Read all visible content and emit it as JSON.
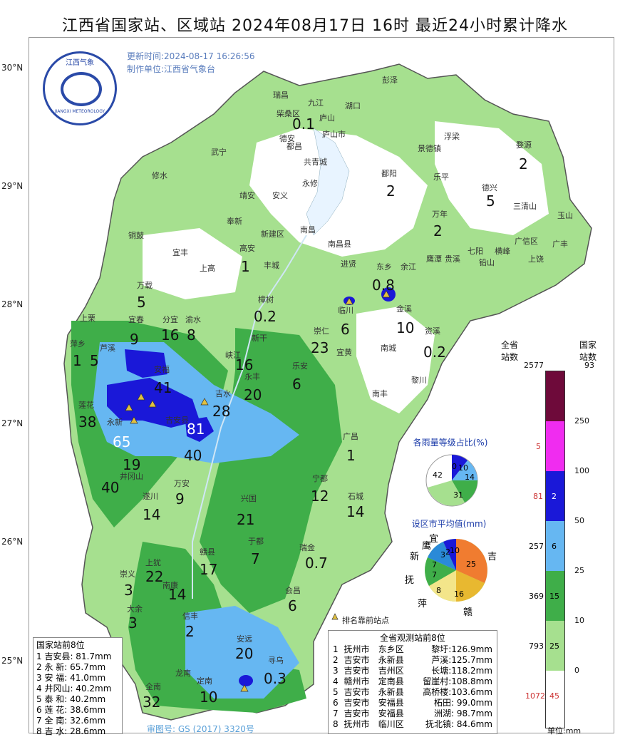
{
  "title": "江西省国家站、区域站   2024年08月17日 16时   最近24小时累计降水",
  "meta": {
    "update_time": "更新时间:2024-08-17 16:26:56",
    "producer": "制作单位:江西省气象台"
  },
  "logo": {
    "cn": "江西气象",
    "en": "JIANGXI METEOROLOGY"
  },
  "latitudes": [
    "30°N",
    "29°N",
    "28°N",
    "27°N",
    "26°N",
    "25°N"
  ],
  "cities": [
    "彭泽",
    "瑞昌",
    "九江",
    "湖口",
    "柴桑区",
    "庐山",
    "庐山市",
    "德安",
    "浮梁",
    "都昌",
    "武宁",
    "景德镇",
    "婺源",
    "共青城",
    "修水",
    "永修",
    "鄱阳",
    "乐平",
    "靖安",
    "安义",
    "德兴",
    "三清山",
    "玉山",
    "奉新",
    "万年",
    "南昌",
    "新建区",
    "铜鼓",
    "宜丰",
    "南昌县",
    "广信区",
    "广丰",
    "七阳",
    "横峰",
    "上高",
    "高安",
    "丰城",
    "进贤",
    "东乡",
    "余江",
    "鹰潭",
    "贵溪",
    "铅山",
    "上饶",
    "万载",
    "樟树",
    "临川",
    "金溪",
    "资溪",
    "上栗",
    "宜春",
    "分宜",
    "渝水",
    "萍乡",
    "芦溪",
    "新干",
    "崇仁",
    "宜黄",
    "南城",
    "安福",
    "峡江",
    "乐安",
    "黎川",
    "吉水",
    "永丰",
    "南丰",
    "莲花",
    "永新",
    "吉安县",
    "广昌",
    "井冈山",
    "宁都",
    "万安",
    "兴国",
    "遂川",
    "石城",
    "于都",
    "瑞金",
    "上犹",
    "赣县",
    "崇义",
    "南康",
    "大余",
    "信丰",
    "会昌",
    "安远",
    "寻乌",
    "龙南",
    "全南",
    "定南"
  ],
  "values": [
    "0.1",
    "2",
    "2",
    "5",
    "2",
    "1",
    "0.8",
    "5",
    "8",
    "0.2",
    "9",
    "16",
    "6",
    "10",
    "1",
    "5",
    "16",
    "23",
    "0.2",
    "41",
    "20",
    "6",
    "38",
    "28",
    "81",
    "65",
    "40",
    "1",
    "19",
    "40",
    "12",
    "9",
    "14",
    "21",
    "14",
    "7",
    "17",
    "0.7",
    "3",
    "22",
    "14",
    "6",
    "3",
    "2",
    "20",
    "0.3",
    "32",
    "10"
  ],
  "legend": {
    "header_province": "全省\n站数",
    "header_national": "国家\n站数",
    "top_province": "2577",
    "top_national": "93",
    "levels": [
      "250",
      "100",
      "50",
      "25",
      "10",
      "0"
    ],
    "province_counts": [
      "5",
      "81",
      "257",
      "369",
      "793",
      "1072"
    ],
    "national_counts": [
      "",
      "2",
      "6",
      "15",
      "25",
      "45"
    ],
    "unit": "单位:mm"
  },
  "pie1": {
    "title": "各雨量等级占比(%)",
    "labels": [
      "42",
      "0",
      "10",
      "14",
      "31"
    ]
  },
  "pie2": {
    "title": "设区市平均值(mm)",
    "labels": [
      "25",
      "16",
      "8",
      "7",
      "7",
      "3",
      "2",
      "10"
    ],
    "names": [
      "吉",
      "赣",
      "萍",
      "抚",
      "新",
      "鹰",
      "宜"
    ]
  },
  "marker_note": "排名靠前站点",
  "national_top8": {
    "title": "国家站前8位",
    "rows": [
      "1 吉安县: 81.7mm",
      "2 永  新: 65.7mm",
      "3 安  福: 41.0mm",
      "4 井冈山: 40.2mm",
      "5 泰  和: 40.2mm",
      "6 莲  花: 38.6mm",
      "7 全  南: 32.6mm",
      "8 吉  水: 28.6mm"
    ]
  },
  "all_top8": {
    "title": "全省观测站前8位",
    "rows": [
      [
        "1",
        "抚州市",
        "东乡区",
        "黎圩:126.9mm"
      ],
      [
        "2",
        "吉安市",
        "永新县",
        "芦溪:125.7mm"
      ],
      [
        "3",
        "吉安市",
        "吉州区",
        "长塘:118.2mm"
      ],
      [
        "4",
        "赣州市",
        "定南县",
        "留崖村:108.8mm"
      ],
      [
        "5",
        "吉安市",
        "永新县",
        "高桥楼:103.6mm"
      ],
      [
        "6",
        "吉安市",
        "安福县",
        "柘田: 99.0mm"
      ],
      [
        "7",
        "吉安市",
        "安福县",
        "洲湖: 98.7mm"
      ],
      [
        "8",
        "抚州市",
        "临川区",
        "抚北镇: 84.6mm"
      ]
    ]
  },
  "review_number": "审图号: GS (2017) 3320号",
  "colors": {
    "level0": "#ffffff",
    "level1": "#a6e08f",
    "level2": "#3fae49",
    "level3": "#66b7f2",
    "level4": "#1a18d8",
    "level5": "#f02cf0",
    "level6": "#6e0a3a"
  }
}
